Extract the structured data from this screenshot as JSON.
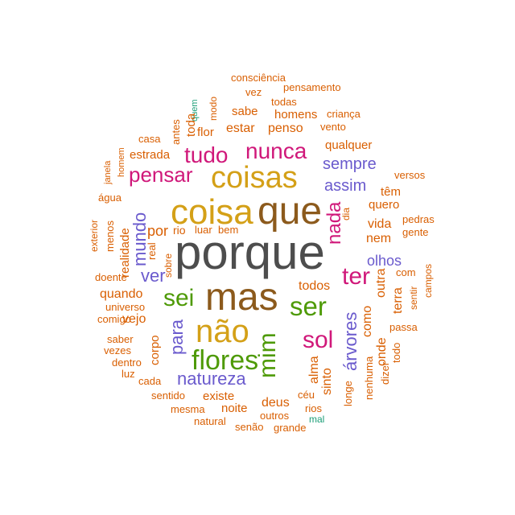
{
  "colors": {
    "charcoal": "#4d4d4d",
    "brown": "#8c5a1c",
    "gold": "#d4a017",
    "green": "#4e9a06",
    "magenta": "#d0187a",
    "purple": "#6a5acd",
    "orange": "#d95f02",
    "teal": "#1b9e77"
  },
  "words": [
    {
      "text": "porque",
      "color": "charcoal"
    },
    {
      "text": "mas",
      "color": "brown"
    },
    {
      "text": "que",
      "color": "brown"
    },
    {
      "text": "coisa",
      "color": "gold"
    },
    {
      "text": "coisas",
      "color": "gold"
    },
    {
      "text": "não",
      "color": "gold"
    },
    {
      "text": "flores",
      "color": "green"
    },
    {
      "text": "ser",
      "color": "green"
    },
    {
      "text": "sei",
      "color": "green"
    },
    {
      "text": "mim",
      "color": "green"
    },
    {
      "text": "sol",
      "color": "magenta"
    },
    {
      "text": "ter",
      "color": "magenta"
    },
    {
      "text": "nunca",
      "color": "magenta"
    },
    {
      "text": "pensar",
      "color": "magenta"
    },
    {
      "text": "tudo",
      "color": "magenta"
    },
    {
      "text": "nada",
      "color": "magenta"
    },
    {
      "text": "natureza",
      "color": "purple"
    },
    {
      "text": "mundo",
      "color": "purple"
    },
    {
      "text": "sempre",
      "color": "purple"
    },
    {
      "text": "assim",
      "color": "purple"
    },
    {
      "text": "olhos",
      "color": "purple"
    },
    {
      "text": "ver",
      "color": "purple"
    },
    {
      "text": "para",
      "color": "purple"
    },
    {
      "text": "árvores",
      "color": "purple"
    },
    {
      "text": "consciência",
      "color": "orange"
    },
    {
      "text": "vez",
      "color": "orange"
    },
    {
      "text": "pensamento",
      "color": "orange"
    },
    {
      "text": "todas",
      "color": "orange"
    },
    {
      "text": "sabe",
      "color": "orange"
    },
    {
      "text": "homens",
      "color": "orange"
    },
    {
      "text": "criança",
      "color": "orange"
    },
    {
      "text": "quem",
      "color": "teal"
    },
    {
      "text": "modo",
      "color": "orange"
    },
    {
      "text": "toda",
      "color": "orange"
    },
    {
      "text": "antes",
      "color": "orange"
    },
    {
      "text": "casa",
      "color": "orange"
    },
    {
      "text": "flor",
      "color": "orange"
    },
    {
      "text": "estar",
      "color": "orange"
    },
    {
      "text": "penso",
      "color": "orange"
    },
    {
      "text": "vento",
      "color": "orange"
    },
    {
      "text": "qualquer",
      "color": "orange"
    },
    {
      "text": "estrada",
      "color": "orange"
    },
    {
      "text": "janela",
      "color": "orange"
    },
    {
      "text": "homem",
      "color": "orange"
    },
    {
      "text": "versos",
      "color": "orange"
    },
    {
      "text": "água",
      "color": "orange"
    },
    {
      "text": "têm",
      "color": "orange"
    },
    {
      "text": "quero",
      "color": "orange"
    },
    {
      "text": "exterior",
      "color": "orange"
    },
    {
      "text": "menos",
      "color": "orange"
    },
    {
      "text": "realidade",
      "color": "orange"
    },
    {
      "text": "por",
      "color": "orange"
    },
    {
      "text": "rio",
      "color": "orange"
    },
    {
      "text": "luar",
      "color": "orange"
    },
    {
      "text": "bem",
      "color": "orange"
    },
    {
      "text": "dia",
      "color": "orange"
    },
    {
      "text": "vida",
      "color": "orange"
    },
    {
      "text": "pedras",
      "color": "orange"
    },
    {
      "text": "gente",
      "color": "orange"
    },
    {
      "text": "nem",
      "color": "orange"
    },
    {
      "text": "real",
      "color": "orange"
    },
    {
      "text": "sobre",
      "color": "orange"
    },
    {
      "text": "doente",
      "color": "orange"
    },
    {
      "text": "quando",
      "color": "orange"
    },
    {
      "text": "todos",
      "color": "orange"
    },
    {
      "text": "com",
      "color": "orange"
    },
    {
      "text": "outra",
      "color": "orange"
    },
    {
      "text": "terra",
      "color": "orange"
    },
    {
      "text": "sentir",
      "color": "orange"
    },
    {
      "text": "campos",
      "color": "orange"
    },
    {
      "text": "universo",
      "color": "orange"
    },
    {
      "text": "comigo",
      "color": "orange"
    },
    {
      "text": "vejo",
      "color": "orange"
    },
    {
      "text": "como",
      "color": "orange"
    },
    {
      "text": "passa",
      "color": "orange"
    },
    {
      "text": "saber",
      "color": "orange"
    },
    {
      "text": "vezes",
      "color": "orange"
    },
    {
      "text": "corpo",
      "color": "orange"
    },
    {
      "text": "dentro",
      "color": "orange"
    },
    {
      "text": "luz",
      "color": "orange"
    },
    {
      "text": "alma",
      "color": "orange"
    },
    {
      "text": "sinto",
      "color": "orange"
    },
    {
      "text": "onde",
      "color": "orange"
    },
    {
      "text": "todo",
      "color": "orange"
    },
    {
      "text": "nenhuma",
      "color": "orange"
    },
    {
      "text": "dizer",
      "color": "orange"
    },
    {
      "text": "cada",
      "color": "orange"
    },
    {
      "text": "existe",
      "color": "orange"
    },
    {
      "text": "sentido",
      "color": "orange"
    },
    {
      "text": "longe",
      "color": "orange"
    },
    {
      "text": "deus",
      "color": "orange"
    },
    {
      "text": "céu",
      "color": "orange"
    },
    {
      "text": "mesma",
      "color": "orange"
    },
    {
      "text": "noite",
      "color": "orange"
    },
    {
      "text": "rios",
      "color": "orange"
    },
    {
      "text": "outros",
      "color": "orange"
    },
    {
      "text": "natural",
      "color": "orange"
    },
    {
      "text": "senão",
      "color": "orange"
    },
    {
      "text": "grande",
      "color": "orange"
    },
    {
      "text": "mal",
      "color": "teal"
    }
  ]
}
